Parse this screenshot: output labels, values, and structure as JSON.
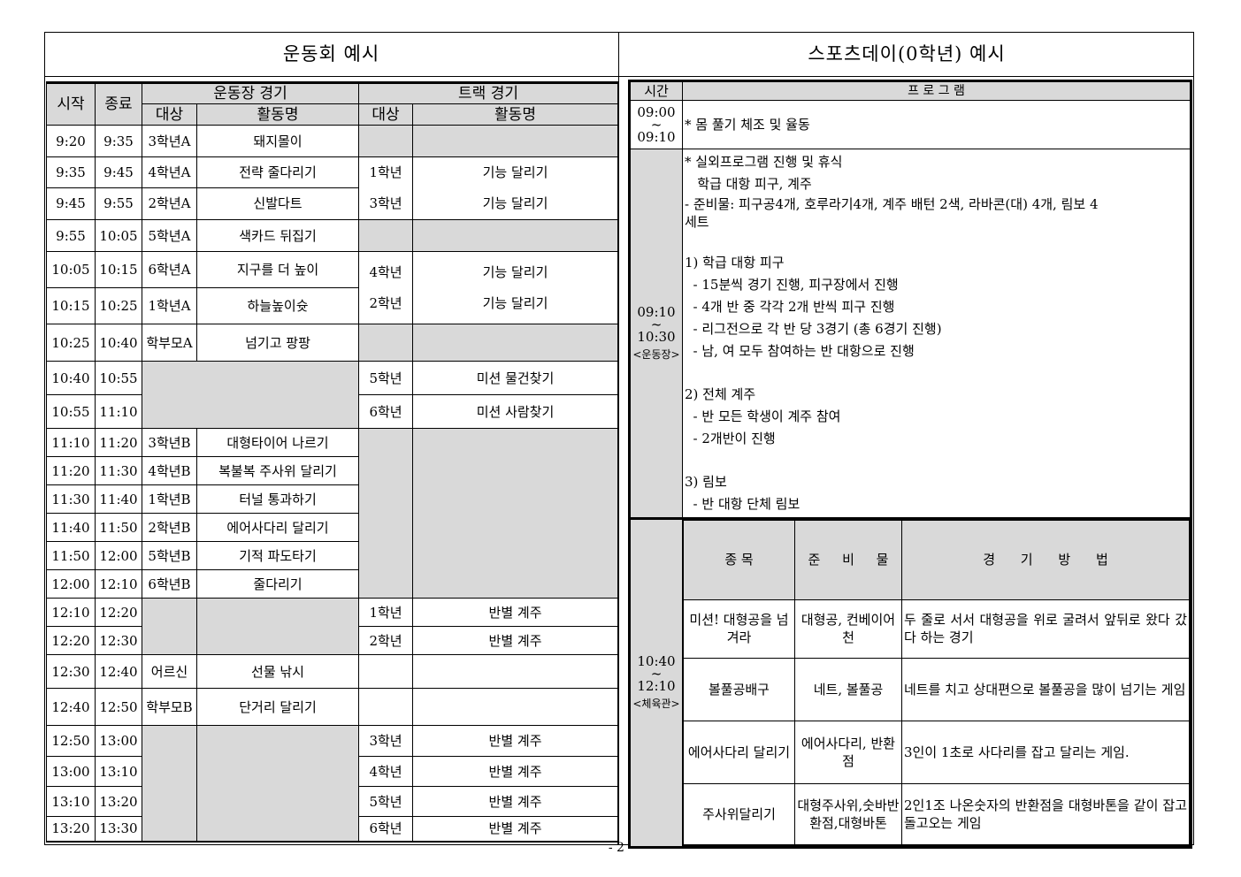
{
  "left": {
    "title": "운동회 예시",
    "headers": {
      "start": "시작",
      "end": "종료",
      "ground": "운동장 경기",
      "track": "트랙 경기",
      "target": "대상",
      "activity": "활동명"
    },
    "rows": [
      {
        "start": "9:20",
        "end": "9:35",
        "g_target": "3학년A",
        "g_activity": "돼지몰이"
      },
      {
        "start": "9:35",
        "end": "9:45",
        "g_target": "4학년A",
        "g_activity": "전략 줄다리기",
        "t_target": "1학년",
        "t_activity": "기능 달리기"
      },
      {
        "start": "9:45",
        "end": "9:55",
        "g_target": "2학년A",
        "g_activity": "신발다트",
        "t_target": "3학년",
        "t_activity": "기능 달리기"
      },
      {
        "start": "9:55",
        "end": "10:05",
        "g_target": "5학년A",
        "g_activity": "색카드 뒤집기"
      },
      {
        "start": "10:05",
        "end": "10:15",
        "g_target": "6학년A",
        "g_activity": "지구를 더 높이",
        "t_target": "4학년",
        "t_activity": "기능 달리기"
      },
      {
        "start": "10:15",
        "end": "10:25",
        "g_target": "1학년A",
        "g_activity": "하늘높이슛",
        "t_target": "2학년",
        "t_activity": "기능 달리기"
      },
      {
        "start": "10:25",
        "end": "10:40",
        "g_target": "학부모A",
        "g_activity": "넘기고 팡팡"
      },
      {
        "start": "10:40",
        "end": "10:55",
        "t_target": "5학년",
        "t_activity": "미션 물건찾기"
      },
      {
        "start": "10:55",
        "end": "11:10",
        "t_target": "6학년",
        "t_activity": "미션 사람찾기"
      },
      {
        "start": "11:10",
        "end": "11:20",
        "g_target": "3학년B",
        "g_activity": "대형타이어 나르기"
      },
      {
        "start": "11:20",
        "end": "11:30",
        "g_target": "4학년B",
        "g_activity": "복불복 주사위 달리기"
      },
      {
        "start": "11:30",
        "end": "11:40",
        "g_target": "1학년B",
        "g_activity": "터널 통과하기"
      },
      {
        "start": "11:40",
        "end": "11:50",
        "g_target": "2학년B",
        "g_activity": "에어사다리 달리기"
      },
      {
        "start": "11:50",
        "end": "12:00",
        "g_target": "5학년B",
        "g_activity": "기적 파도타기"
      },
      {
        "start": "12:00",
        "end": "12:10",
        "g_target": "6학년B",
        "g_activity": "줄다리기"
      },
      {
        "start": "12:10",
        "end": "12:20",
        "t_target": "1학년",
        "t_activity": "반별 계주"
      },
      {
        "start": "12:20",
        "end": "12:30",
        "t_target": "2학년",
        "t_activity": "반별 계주"
      },
      {
        "start": "12:30",
        "end": "12:40",
        "g_target": "어르신",
        "g_activity": "선물 낚시"
      },
      {
        "start": "12:40",
        "end": "12:50",
        "g_target": "학부모B",
        "g_activity": "단거리 달리기"
      },
      {
        "start": "12:50",
        "end": "13:00",
        "t_target": "3학년",
        "t_activity": "반별 계주"
      },
      {
        "start": "13:00",
        "end": "13:10",
        "t_target": "4학년",
        "t_activity": "반별 계주"
      },
      {
        "start": "13:10",
        "end": "13:20",
        "t_target": "5학년",
        "t_activity": "반별 계주"
      },
      {
        "start": "13:20",
        "end": "13:30",
        "t_target": "6학년",
        "t_activity": "반별 계주"
      }
    ]
  },
  "right": {
    "title": "스포츠데이(0학년) 예시",
    "headers": {
      "time": "시간",
      "program": "프 로 그 램"
    },
    "block1": {
      "time_start": "09:00",
      "tilde": "~",
      "time_end": "09:10",
      "lines": [
        "* 몸 풀기 체조 및 율동"
      ]
    },
    "block2": {
      "time_start": "09:10",
      "tilde": "~",
      "time_end": "10:30",
      "location": "<운동장>",
      "lines": [
        "* 실외프로그램 진행 및 휴식",
        "   학급 대항 피구, 계주",
        "- 준비물: 피구공4개, 호루라기4개, 계주 배턴 2색, 라바콘(대) 4개, 림보 4",
        "세트",
        "",
        "1) 학급 대항 피구",
        "  - 15분씩 경기 진행, 피구장에서 진행",
        "  - 4개 반 중 각각 2개 반씩 피구 진행",
        "  - 리그전으로 각 반 당 3경기 (총 6경기 진행)",
        "  - 남, 여 모두 참여하는 반 대항으로 진행",
        "",
        "2) 전체 계주",
        "  - 반 모든 학생이 계주 참여",
        "  - 2개반이 진행",
        "",
        "3) 림보",
        "  - 반 대항 단체 림보"
      ]
    },
    "block3": {
      "time_start": "10:40",
      "tilde": "~",
      "time_end": "12:10",
      "location": "<체육관>",
      "headers": {
        "event": "종 목",
        "supplies": "준 비 물",
        "method": "경 기 방 법"
      },
      "rows": [
        {
          "event": "미션! 대형공을 넘겨라",
          "supplies": "대형공, 컨베이어천",
          "method": "두 줄로 서서 대형공을 위로 굴려서 앞뒤로 왔다 갔다 하는 경기"
        },
        {
          "event": "볼풀공배구",
          "supplies": "네트, 볼풀공",
          "method": "네트를 치고 상대편으로 볼풀공을 많이 넘기는 게임"
        },
        {
          "event": "에어사다리 달리기",
          "supplies": "에어사다리, 반환점",
          "method": "3인이 1초로 사다리를 잡고 달리는 게임."
        },
        {
          "event": "주사위달리기",
          "supplies": "대형주사위,숫바반환점,대형바톤",
          "method": "2인1조 나온숫자의 반환점을 대형바톤을 같이 잡고 돌고오는 게임"
        }
      ]
    }
  },
  "page_number": "- 2 -"
}
